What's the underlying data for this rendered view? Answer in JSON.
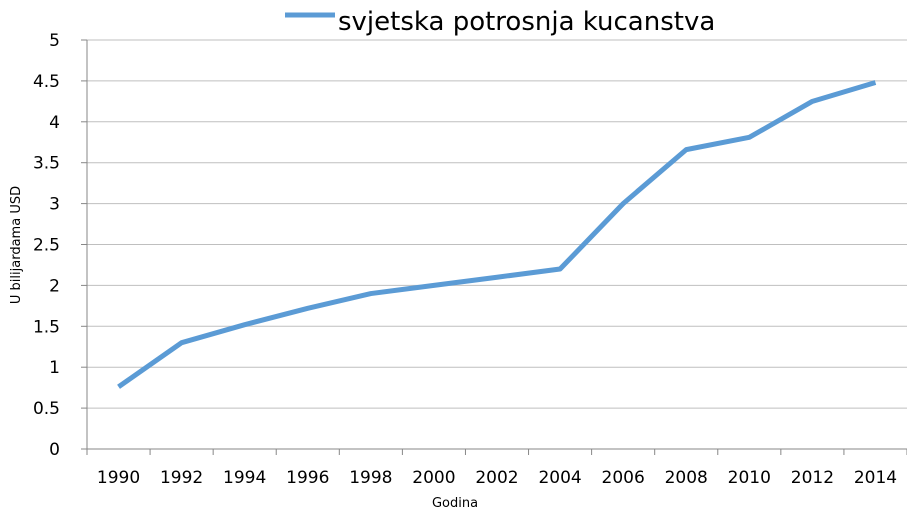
{
  "chart_data": {
    "type": "line",
    "legend_position": "top",
    "x_label": "Godina",
    "y_label": "U bilijardama USD",
    "categories": [
      "1990",
      "1992",
      "1994",
      "1996",
      "1998",
      "2000",
      "2002",
      "2004",
      "2006",
      "2008",
      "2010",
      "2012",
      "2014"
    ],
    "series": [
      {
        "name": "svjetska potrosnja kucanstva",
        "color": "#5b9bd5",
        "values": [
          0.76,
          1.3,
          1.52,
          1.72,
          1.9,
          2.0,
          2.1,
          2.2,
          3.0,
          3.66,
          3.81,
          4.25,
          4.48
        ]
      }
    ],
    "ylim": [
      0,
      5
    ],
    "yticks": [
      0,
      0.5,
      1,
      1.5,
      2,
      2.5,
      3,
      3.5,
      4,
      4.5,
      5
    ],
    "grid": true
  }
}
